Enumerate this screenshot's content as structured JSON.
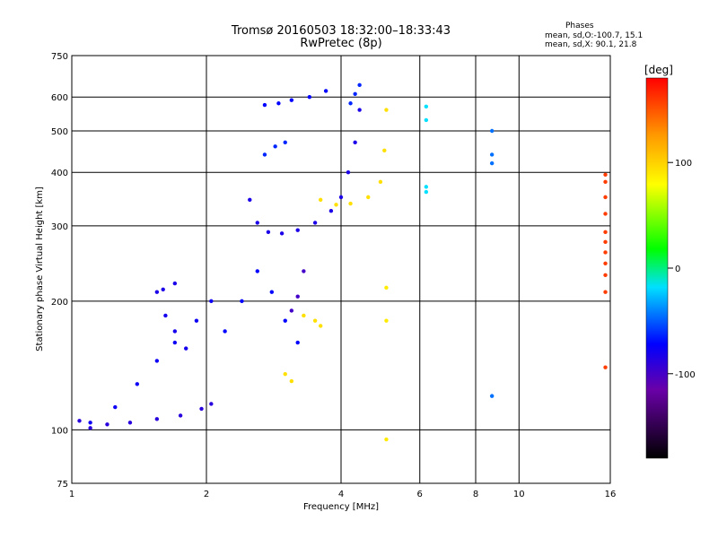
{
  "title_line1": "Tromsø 20160503 18:32:00–18:33:43",
  "title_line2": "RwPretec (8p)",
  "phases_box": {
    "heading": "Phases",
    "line_o": "mean, sd,O:-100.7, 15.1",
    "line_x": "mean, sd,X:  90.1, 21.8"
  },
  "chart_data": {
    "type": "scatter",
    "xlabel": "Frequency [MHz]",
    "ylabel": "Stationary phase Virtual Height [km]",
    "x_scale": "log",
    "y_scale": "log",
    "xlim": [
      1,
      16
    ],
    "ylim": [
      75,
      750
    ],
    "x_ticks": [
      1,
      2,
      4,
      6,
      8,
      10,
      16
    ],
    "y_ticks": [
      75,
      100,
      200,
      300,
      400,
      500,
      600,
      750
    ],
    "grid": true,
    "colorbar": {
      "label": "[deg]",
      "ticks": [
        100,
        0,
        -100
      ],
      "range": [
        -180,
        180
      ]
    },
    "traces": [
      {
        "x": [
          1.04,
          1.1,
          1.2,
          1.35,
          1.55,
          1.75,
          1.95,
          2.05
        ],
        "y": [
          105,
          101,
          103,
          104,
          106,
          108,
          112,
          115
        ],
        "phase": -115
      },
      {
        "x": [
          1.1,
          1.25,
          1.4,
          1.55,
          1.7,
          1.9,
          2.05
        ],
        "y": [
          104,
          113,
          128,
          145,
          160,
          180,
          200
        ],
        "phase": -105
      },
      {
        "x": [
          1.55,
          1.6,
          1.7
        ],
        "y": [
          210,
          213,
          220
        ],
        "phase": -110
      },
      {
        "x": [
          1.62,
          1.7,
          1.8
        ],
        "y": [
          185,
          170,
          155
        ],
        "phase": -108
      },
      {
        "x": [
          2.5,
          2.6,
          2.75,
          2.95,
          3.2,
          3.5,
          3.8,
          4.0,
          4.15,
          4.3,
          4.4
        ],
        "y": [
          345,
          305,
          290,
          288,
          293,
          305,
          325,
          350,
          400,
          470,
          560
        ],
        "phase": -110
      },
      {
        "x": [
          4.2,
          4.3,
          4.4
        ],
        "y": [
          580,
          610,
          640
        ],
        "phase": -90
      },
      {
        "x": [
          2.7,
          2.9,
          3.1,
          3.4,
          3.7
        ],
        "y": [
          575,
          580,
          590,
          600,
          620
        ],
        "phase": -100
      },
      {
        "x": [
          2.7,
          2.85,
          3.0
        ],
        "y": [
          440,
          460,
          470
        ],
        "phase": -90
      },
      {
        "x": [
          2.2,
          2.4,
          2.6,
          2.8,
          3.0,
          3.2
        ],
        "y": [
          170,
          200,
          235,
          210,
          180,
          160
        ],
        "phase": -100
      },
      {
        "x": [
          3.1,
          3.2,
          3.3
        ],
        "y": [
          190,
          205,
          235
        ],
        "phase": -125
      },
      {
        "x": [
          3.6,
          3.9,
          4.2,
          4.6,
          4.9,
          5.0,
          5.05
        ],
        "y": [
          345,
          336,
          338,
          350,
          380,
          450,
          560
        ],
        "phase": 95
      },
      {
        "x": [
          3.3,
          3.5,
          3.6
        ],
        "y": [
          185,
          180,
          175
        ],
        "phase": 95
      },
      {
        "x": [
          3.0,
          3.1
        ],
        "y": [
          135,
          130
        ],
        "phase": 95
      },
      {
        "x": [
          5.05,
          5.05,
          5.05
        ],
        "y": [
          215,
          180,
          95
        ],
        "phase": 90
      },
      {
        "x": [
          6.2,
          6.2,
          6.2,
          6.2
        ],
        "y": [
          570,
          530,
          370,
          360
        ],
        "phase": -40
      },
      {
        "x": [
          8.7,
          8.7,
          8.7,
          8.7
        ],
        "y": [
          440,
          420,
          500,
          120
        ],
        "phase": -70
      },
      {
        "x": [
          15.6,
          15.6,
          15.6,
          15.6,
          15.6,
          15.6,
          15.6,
          15.6,
          15.6,
          15.6,
          15.6
        ],
        "y": [
          395,
          380,
          350,
          320,
          290,
          275,
          260,
          245,
          230,
          210,
          140
        ],
        "phase": 160
      }
    ]
  }
}
